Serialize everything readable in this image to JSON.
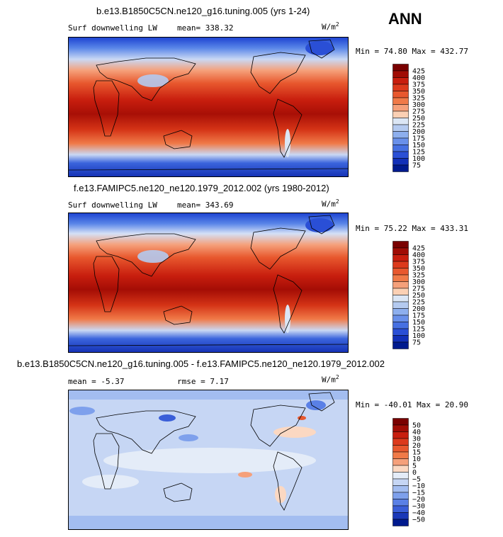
{
  "season": "ANN",
  "unit_base": "W/m",
  "unit_exp": "2",
  "panels": [
    {
      "title": "b.e13.B1850C5CN.ne120_g16.tuning.005 (yrs 1-24)",
      "variable": "Surf downwelling LW",
      "mean_label": "mean=",
      "mean_value": "338.32",
      "range_text": "Min =  74.80 Max = 432.77",
      "colorbar": {
        "levels": [
          "425",
          "400",
          "375",
          "350",
          "325",
          "300",
          "275",
          "250",
          "225",
          "200",
          "175",
          "150",
          "125",
          "100",
          "75"
        ],
        "colors": [
          "#7a0000",
          "#a00c05",
          "#c81e0e",
          "#dc3a1c",
          "#e8582e",
          "#f07a48",
          "#f5a07a",
          "#fbd0b4",
          "#dbe6f5",
          "#b4caf0",
          "#8dafee",
          "#6990ea",
          "#4670e2",
          "#2a4fd6",
          "#1230b8",
          "#001a8e"
        ]
      }
    },
    {
      "title": "f.e13.FAMIPC5.ne120_ne120.1979_2012.002 (yrs 1980-2012)",
      "variable": "Surf downwelling LW",
      "mean_label": "mean=",
      "mean_value": "343.69",
      "range_text": "Min =  75.22 Max = 433.31",
      "colorbar": {
        "levels": [
          "425",
          "400",
          "375",
          "350",
          "325",
          "300",
          "275",
          "250",
          "225",
          "200",
          "175",
          "150",
          "125",
          "100",
          "75"
        ],
        "colors": [
          "#7a0000",
          "#a00c05",
          "#c81e0e",
          "#dc3a1c",
          "#e8582e",
          "#f07a48",
          "#f5a07a",
          "#fbd0b4",
          "#dbe6f5",
          "#b4caf0",
          "#8dafee",
          "#6990ea",
          "#4670e2",
          "#2a4fd6",
          "#1230b8",
          "#001a8e"
        ]
      }
    },
    {
      "title": "b.e13.B1850C5CN.ne120_g16.tuning.005 - f.e13.FAMIPC5.ne120_ne120.1979_2012.002",
      "mean_label": "mean =",
      "mean_value": "-5.37",
      "rmse_label": "rmse =",
      "rmse_value": "7.17",
      "range_text": "Min = -40.01 Max =  20.90",
      "colorbar": {
        "levels": [
          "50",
          "40",
          "30",
          "20",
          "15",
          "10",
          "5",
          "0",
          "−5",
          "−10",
          "−15",
          "−20",
          "−30",
          "−40",
          "−50"
        ],
        "colors": [
          "#7a0000",
          "#a00c05",
          "#c81e0e",
          "#dc3a1c",
          "#e8582e",
          "#f07a48",
          "#f5a07a",
          "#fbd8c2",
          "#e4ecf8",
          "#c6d6f4",
          "#a3bdf0",
          "#7ea0ec",
          "#5a80e6",
          "#3a5ed8",
          "#1a38b8",
          "#001a8e"
        ]
      }
    }
  ],
  "chart_data": [
    {
      "type": "heatmap",
      "title": "b.e13.B1850C5CN.ne120_g16.tuning.005 (yrs 1-24)",
      "subtitle": "Surf downwelling LW",
      "mean": 338.32,
      "min": 74.8,
      "max": 432.77,
      "units": "W/m2",
      "levels": [
        75,
        100,
        125,
        150,
        175,
        200,
        225,
        250,
        275,
        300,
        325,
        350,
        375,
        400,
        425
      ],
      "xlim": [
        -180,
        180
      ],
      "ylim": [
        -90,
        90
      ]
    },
    {
      "type": "heatmap",
      "title": "f.e13.FAMIPC5.ne120_ne120.1979_2012.002 (yrs 1980-2012)",
      "subtitle": "Surf downwelling LW",
      "mean": 343.69,
      "min": 75.22,
      "max": 433.31,
      "units": "W/m2",
      "levels": [
        75,
        100,
        125,
        150,
        175,
        200,
        225,
        250,
        275,
        300,
        325,
        350,
        375,
        400,
        425
      ],
      "xlim": [
        -180,
        180
      ],
      "ylim": [
        -90,
        90
      ]
    },
    {
      "type": "heatmap",
      "title": "b.e13.B1850C5CN.ne120_g16.tuning.005 - f.e13.FAMIPC5.ne120_ne120.1979_2012.002",
      "mean": -5.37,
      "rmse": 7.17,
      "min": -40.01,
      "max": 20.9,
      "units": "W/m2",
      "levels": [
        -50,
        -40,
        -30,
        -20,
        -15,
        -10,
        -5,
        0,
        5,
        10,
        15,
        20,
        30,
        40,
        50
      ],
      "xlim": [
        -180,
        180
      ],
      "ylim": [
        -90,
        90
      ]
    }
  ]
}
